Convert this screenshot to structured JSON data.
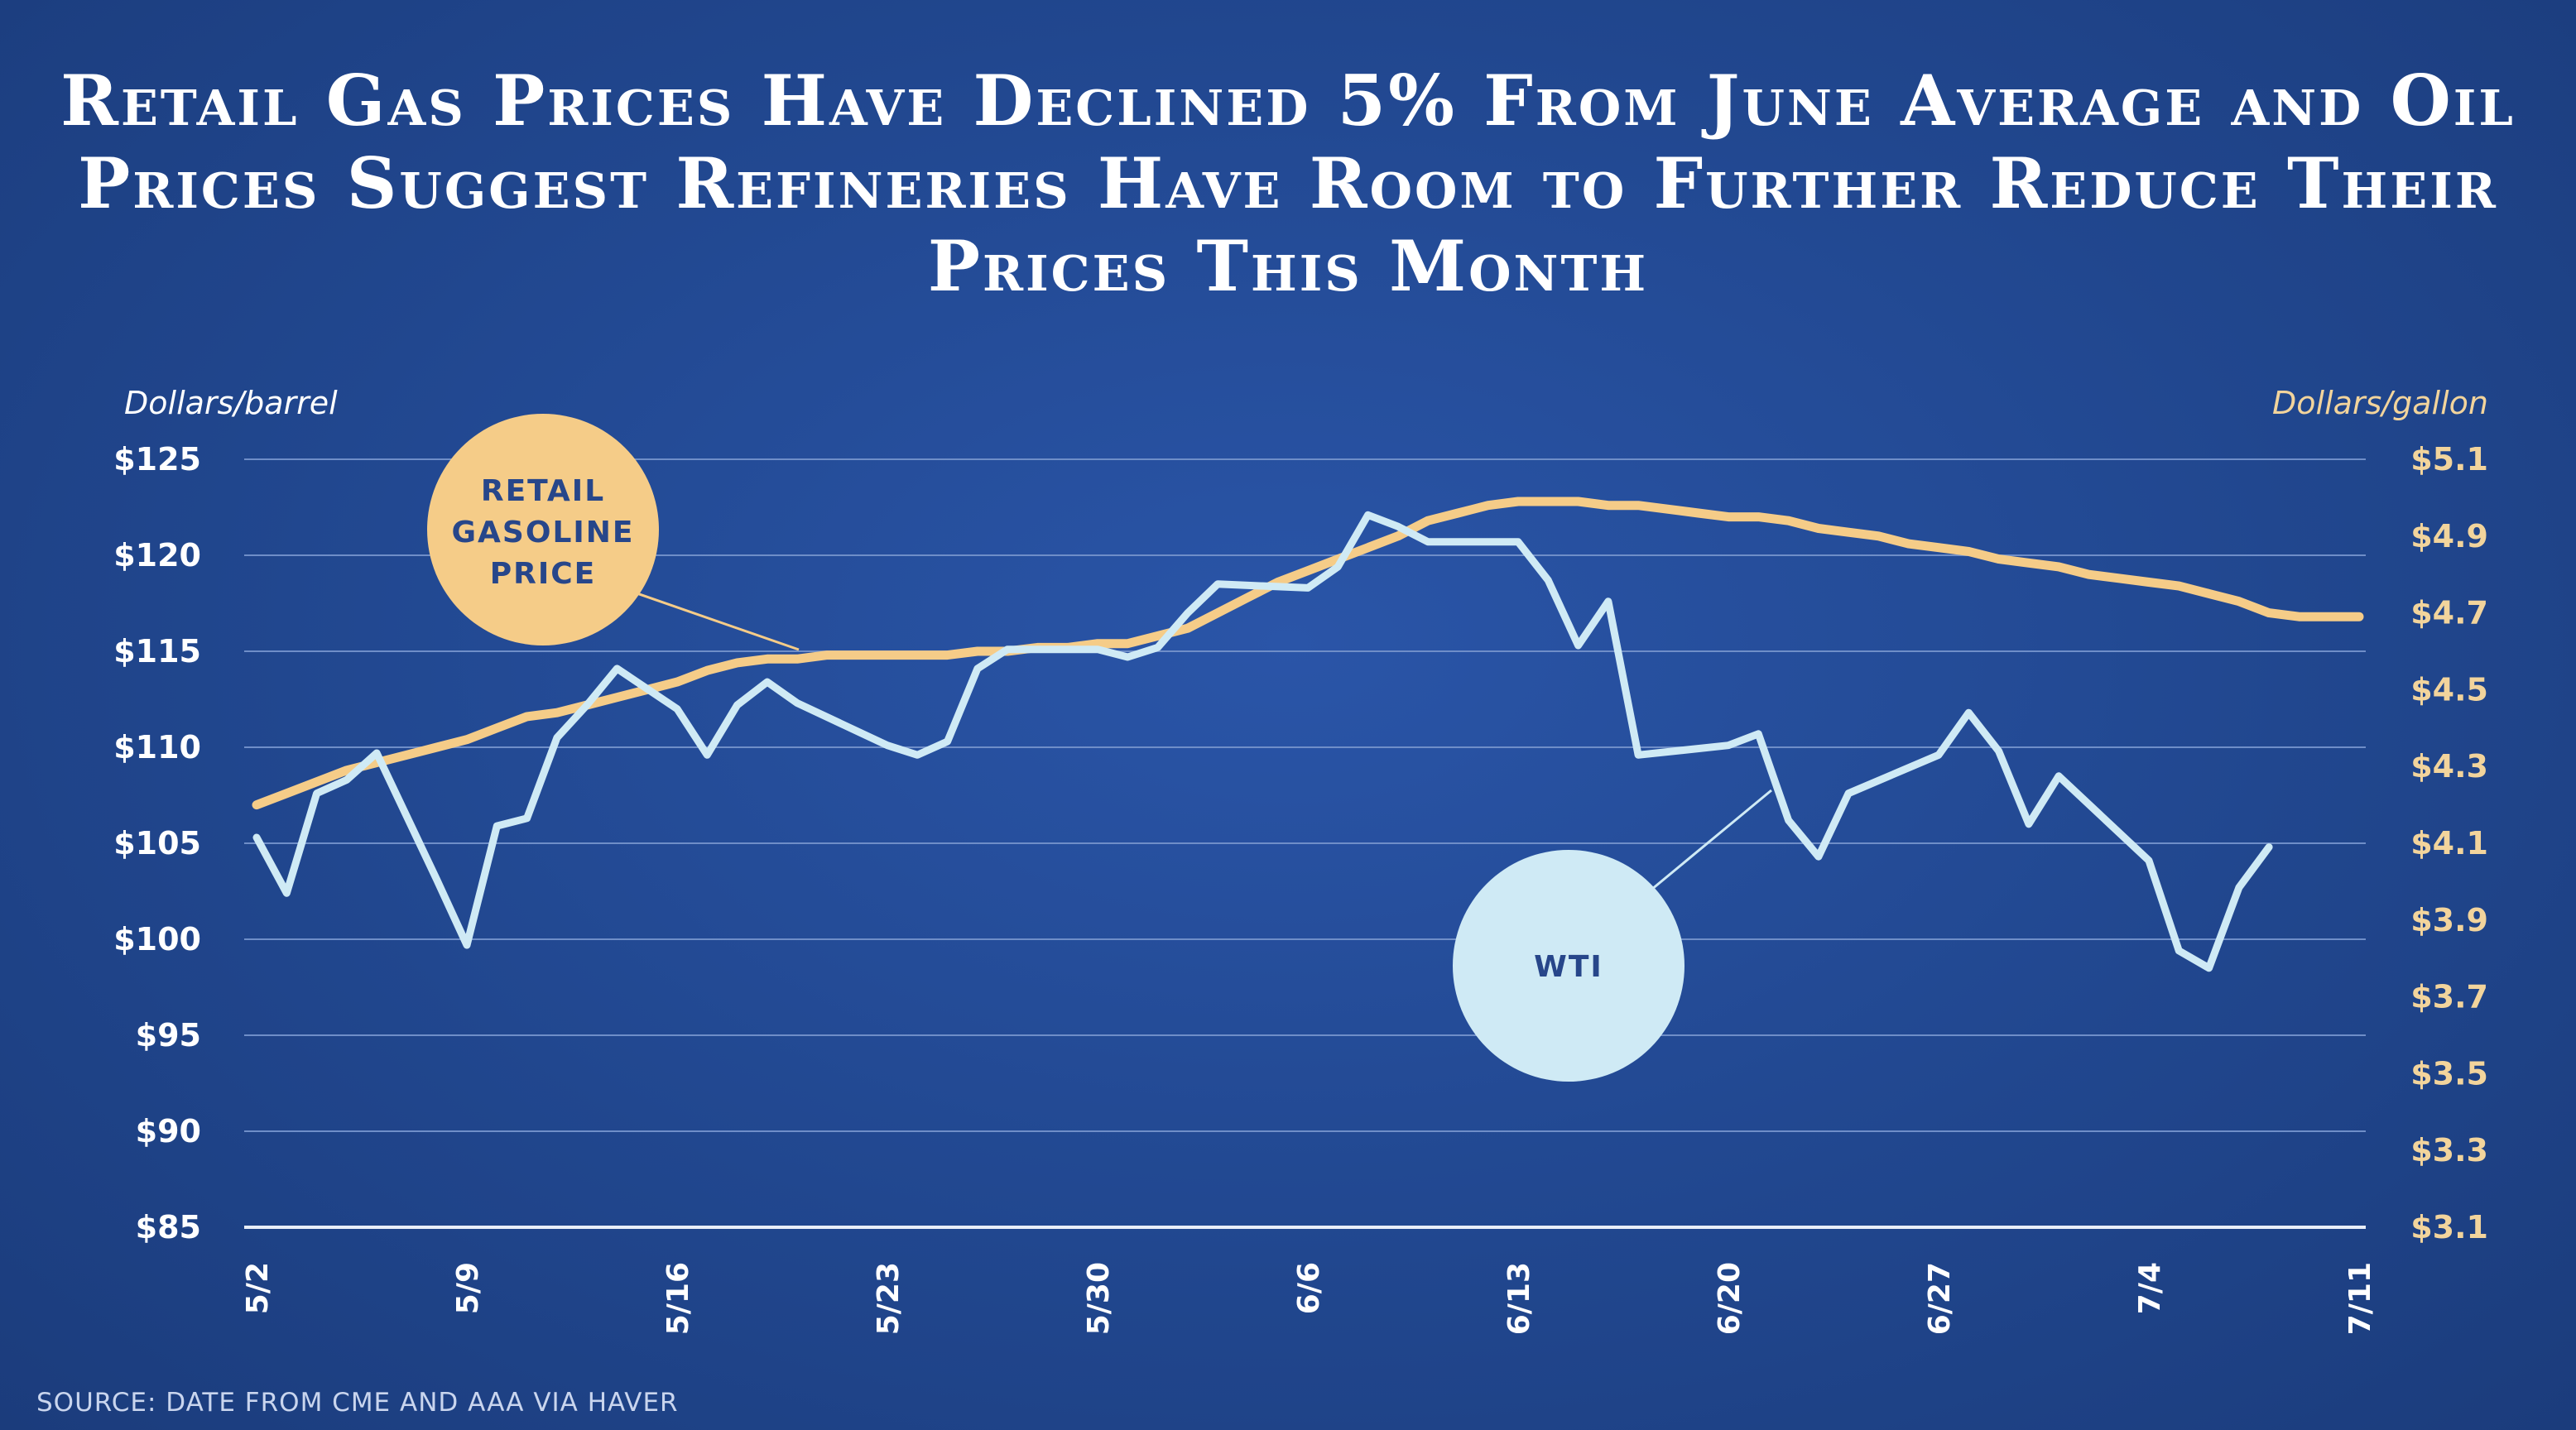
{
  "title": "Retail Gas Prices Have Declined 5% From June Average and Oil Prices Suggest Refineries Have Room to Further Reduce Their Prices This Month",
  "source": "SOURCE: DATE FROM CME AND AAA VIA HAVER",
  "colors": {
    "gasoline": "#f5cc88",
    "wti": "#cfeaf5",
    "gridline": "#6f8ec8",
    "right_axis_text": "#f2d49c",
    "bubble_text": "#27468a",
    "background": "#2250a0"
  },
  "chart_data": {
    "type": "line",
    "title": "Retail Gas Prices Have Declined 5% From June Average and Oil Prices Suggest Refineries Have Room to Further Reduce Their Prices This Month",
    "y_left_label": "Dollars/barrel",
    "y_right_label": "Dollars/gallon",
    "y_left_range": [
      85,
      125
    ],
    "y_right_range": [
      3.1,
      5.1
    ],
    "y_left_ticks": [
      125,
      120,
      115,
      110,
      105,
      100,
      95,
      90,
      85
    ],
    "y_left_tick_labels": [
      "$125",
      "$120",
      "$115",
      "$110",
      "$105",
      "$100",
      "$95",
      "$90",
      "$85"
    ],
    "y_right_ticks": [
      5.1,
      4.9,
      4.7,
      4.5,
      4.3,
      4.1,
      3.9,
      3.7,
      3.5,
      3.3,
      3.1
    ],
    "y_right_tick_labels": [
      "$5.1",
      "$4.9",
      "$4.7",
      "$4.5",
      "$4.3",
      "$4.1",
      "$3.9",
      "$3.7",
      "$3.5",
      "$3.3",
      "$3.1"
    ],
    "x_range": [
      "5/2",
      "7/11"
    ],
    "x_ticks": [
      "5/2",
      "5/9",
      "5/16",
      "5/23",
      "5/30",
      "6/6",
      "6/13",
      "6/20",
      "6/27",
      "7/4",
      "7/11"
    ],
    "grid": true,
    "series": [
      {
        "name": "RETAIL GASOLINE PRICE",
        "axis": "right",
        "x": [
          "5/2",
          "5/3",
          "5/4",
          "5/5",
          "5/6",
          "5/7",
          "5/8",
          "5/9",
          "5/10",
          "5/11",
          "5/12",
          "5/13",
          "5/14",
          "5/15",
          "5/16",
          "5/17",
          "5/18",
          "5/19",
          "5/20",
          "5/21",
          "5/22",
          "5/23",
          "5/24",
          "5/25",
          "5/26",
          "5/27",
          "5/28",
          "5/29",
          "5/30",
          "5/31",
          "6/1",
          "6/2",
          "6/3",
          "6/4",
          "6/5",
          "6/6",
          "6/7",
          "6/8",
          "6/9",
          "6/10",
          "6/11",
          "6/12",
          "6/13",
          "6/14",
          "6/15",
          "6/16",
          "6/17",
          "6/18",
          "6/19",
          "6/20",
          "6/21",
          "6/22",
          "6/23",
          "6/24",
          "6/25",
          "6/26",
          "6/27",
          "6/28",
          "6/29",
          "6/30",
          "7/1",
          "7/2",
          "7/3",
          "7/4",
          "7/5",
          "7/6",
          "7/7",
          "7/8",
          "7/9",
          "7/10",
          "7/11"
        ],
        "values": [
          4.2,
          4.23,
          4.26,
          4.29,
          4.31,
          4.33,
          4.35,
          4.37,
          4.4,
          4.43,
          4.44,
          4.46,
          4.48,
          4.5,
          4.52,
          4.55,
          4.57,
          4.58,
          4.58,
          4.59,
          4.59,
          4.59,
          4.59,
          4.59,
          4.6,
          4.6,
          4.61,
          4.61,
          4.62,
          4.62,
          4.64,
          4.66,
          4.7,
          4.74,
          4.78,
          4.81,
          4.84,
          4.87,
          4.9,
          4.94,
          4.96,
          4.98,
          4.99,
          4.99,
          4.99,
          4.98,
          4.98,
          4.97,
          4.96,
          4.95,
          4.95,
          4.94,
          4.92,
          4.91,
          4.9,
          4.88,
          4.87,
          4.86,
          4.84,
          4.83,
          4.82,
          4.8,
          4.79,
          4.78,
          4.77,
          4.75,
          4.73,
          4.7,
          4.69,
          4.69,
          4.69
        ]
      },
      {
        "name": "WTI",
        "axis": "left",
        "x": [
          "5/2",
          "5/3",
          "5/4",
          "5/5",
          "5/6",
          "5/8",
          "5/9",
          "5/10",
          "5/11",
          "5/12",
          "5/13",
          "5/14",
          "5/16",
          "5/17",
          "5/18",
          "5/19",
          "5/20",
          "5/23",
          "5/24",
          "5/25",
          "5/26",
          "5/27",
          "5/30",
          "5/31",
          "6/1",
          "6/2",
          "6/3",
          "6/6",
          "6/7",
          "6/8",
          "6/9",
          "6/10",
          "6/13",
          "6/14",
          "6/15",
          "6/16",
          "6/17",
          "6/20",
          "6/21",
          "6/22",
          "6/23",
          "6/24",
          "6/27",
          "6/28",
          "6/29",
          "6/30",
          "7/1",
          "7/4",
          "7/5",
          "7/6",
          "7/7",
          "7/8",
          "7/9"
        ],
        "values": [
          105.3,
          102.4,
          107.6,
          108.3,
          109.7,
          103.1,
          99.7,
          105.9,
          106.3,
          110.5,
          112.2,
          114.1,
          112.0,
          109.6,
          112.2,
          113.4,
          112.3,
          110.1,
          109.6,
          110.3,
          114.1,
          115.1,
          115.1,
          114.7,
          115.2,
          117.0,
          118.5,
          118.3,
          119.4,
          122.1,
          121.5,
          120.7,
          120.7,
          118.7,
          115.3,
          117.6,
          109.6,
          110.1,
          110.7,
          106.2,
          104.3,
          107.6,
          109.6,
          111.8,
          109.8,
          106.0,
          108.5,
          104.1,
          99.4,
          98.5,
          102.7,
          104.8,
          null
        ]
      }
    ],
    "annotations": [
      {
        "text": "RETAIL GASOLINE PRICE",
        "lines": [
          "RETAIL",
          "GASOLINE",
          "PRICE"
        ],
        "series": "RETAIL GASOLINE PRICE"
      },
      {
        "text": "WTI",
        "lines": [
          "WTI"
        ],
        "series": "WTI"
      }
    ]
  }
}
